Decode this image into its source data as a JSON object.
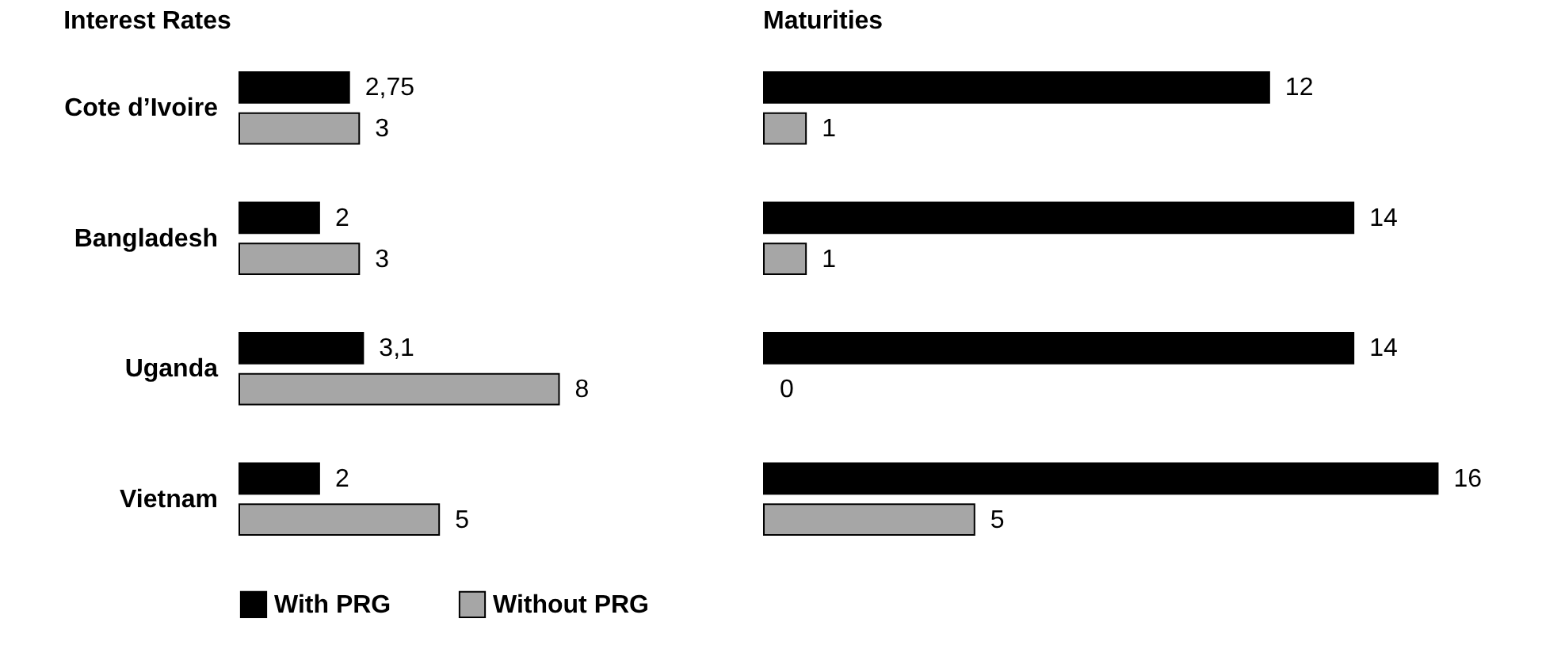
{
  "chart_data": [
    {
      "type": "bar",
      "orientation": "horizontal",
      "title": "Interest Rates",
      "categories": [
        "Cote d’Ivoire",
        "Bangladesh",
        "Uganda",
        "Vietnam"
      ],
      "tick_labels": "y",
      "legend": "bottom",
      "series": [
        {
          "name": "With PRG",
          "color": "#000000",
          "values": [
            2.75,
            2,
            3.1,
            2
          ],
          "value_labels": [
            "2,75",
            "2",
            "3,1",
            "2"
          ]
        },
        {
          "name": "Without PRG",
          "color": "#a6a6a6",
          "values": [
            3,
            3,
            8,
            5
          ],
          "value_labels": [
            "3",
            "3",
            "8",
            "5"
          ]
        }
      ]
    },
    {
      "type": "bar",
      "orientation": "horizontal",
      "title": "Maturities",
      "categories": [
        "Cote d’Ivoire",
        "Bangladesh",
        "Uganda",
        "Vietnam"
      ],
      "tick_labels": false,
      "series": [
        {
          "name": "With PRG",
          "color": "#000000",
          "values": [
            12,
            14,
            14,
            16
          ],
          "value_labels": [
            "12",
            "14",
            "14",
            "16"
          ]
        },
        {
          "name": "Without PRG",
          "color": "#a6a6a6",
          "values": [
            1,
            1,
            0,
            5
          ],
          "value_labels": [
            "1",
            "1",
            "0",
            "5"
          ]
        }
      ]
    }
  ]
}
